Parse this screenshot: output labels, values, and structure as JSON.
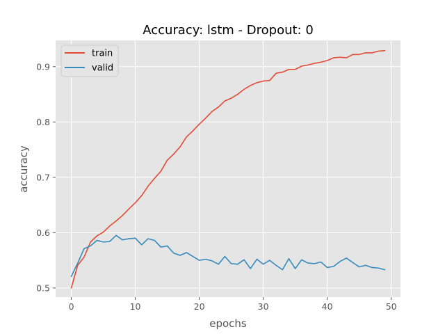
{
  "chart_data": {
    "type": "line",
    "title": "Accuracy: lstm - Dropout: 0",
    "xlabel": "epochs",
    "ylabel": "accuracy",
    "xlim": [
      -2.45,
      51.45
    ],
    "ylim": [
      0.4835,
      0.9475
    ],
    "xticks": [
      0,
      10,
      20,
      30,
      40,
      50
    ],
    "yticks": [
      0.5,
      0.6,
      0.7,
      0.8,
      0.9
    ],
    "ytick_labels": [
      "0.5",
      "0.6",
      "0.7",
      "0.8",
      "0.9"
    ],
    "grid": true,
    "background": "#e5e5e5",
    "legend_position": "top-left",
    "series": [
      {
        "name": "train",
        "color": "#e24a33",
        "x": [
          0,
          1,
          2,
          3,
          4,
          5,
          6,
          7,
          8,
          9,
          10,
          11,
          12,
          13,
          14,
          15,
          16,
          17,
          18,
          19,
          20,
          21,
          22,
          23,
          24,
          25,
          26,
          27,
          28,
          29,
          30,
          31,
          32,
          33,
          34,
          35,
          36,
          37,
          38,
          39,
          40,
          41,
          42,
          43,
          44,
          45,
          46,
          47,
          48,
          49
        ],
        "values": [
          0.5,
          0.541,
          0.556,
          0.583,
          0.594,
          0.601,
          0.612,
          0.621,
          0.631,
          0.643,
          0.654,
          0.667,
          0.684,
          0.698,
          0.711,
          0.731,
          0.742,
          0.755,
          0.773,
          0.784,
          0.796,
          0.807,
          0.819,
          0.827,
          0.838,
          0.843,
          0.85,
          0.859,
          0.866,
          0.871,
          0.874,
          0.875,
          0.888,
          0.89,
          0.895,
          0.895,
          0.901,
          0.903,
          0.906,
          0.908,
          0.911,
          0.916,
          0.917,
          0.916,
          0.922,
          0.922,
          0.925,
          0.925,
          0.928,
          0.929
        ]
      },
      {
        "name": "valid",
        "color": "#348abd",
        "x": [
          0,
          1,
          2,
          3,
          4,
          5,
          6,
          7,
          8,
          9,
          10,
          11,
          12,
          13,
          14,
          15,
          16,
          17,
          18,
          19,
          20,
          21,
          22,
          23,
          24,
          25,
          26,
          27,
          28,
          29,
          30,
          31,
          32,
          33,
          34,
          35,
          36,
          37,
          38,
          39,
          40,
          41,
          42,
          43,
          44,
          45,
          46,
          47,
          48,
          49
        ],
        "values": [
          0.521,
          0.545,
          0.571,
          0.576,
          0.586,
          0.583,
          0.584,
          0.595,
          0.587,
          0.589,
          0.59,
          0.578,
          0.589,
          0.586,
          0.574,
          0.576,
          0.563,
          0.559,
          0.564,
          0.557,
          0.55,
          0.552,
          0.549,
          0.543,
          0.557,
          0.544,
          0.543,
          0.551,
          0.535,
          0.552,
          0.543,
          0.55,
          0.541,
          0.533,
          0.553,
          0.535,
          0.551,
          0.545,
          0.544,
          0.547,
          0.537,
          0.539,
          0.548,
          0.554,
          0.546,
          0.538,
          0.541,
          0.537,
          0.536,
          0.533
        ]
      }
    ]
  }
}
